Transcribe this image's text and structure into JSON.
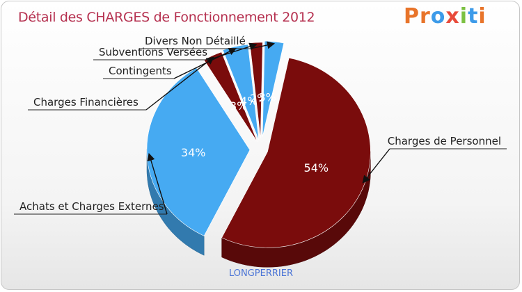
{
  "title": "Détail des CHARGES de Fonctionnement 2012",
  "logo": {
    "text": "Proxiti",
    "letters": [
      "P",
      "r",
      "o",
      "x",
      "i",
      "t",
      "i"
    ],
    "colors": [
      "#e8742a",
      "#e8742a",
      "#3d9be9",
      "#e84a3a",
      "#7cc142",
      "#3d9be9",
      "#e8742a"
    ]
  },
  "commune": "LONGPERRIER",
  "colors": {
    "red": "#7a0c0c",
    "blue": "#46aaf2",
    "title": "#b5304f"
  },
  "chart_data": {
    "type": "pie",
    "title": "Détail des CHARGES de Fonctionnement 2012",
    "subtitle": "LONGPERRIER",
    "slices": [
      {
        "label": "Charges de Personnel",
        "value": 54,
        "pct_label": "54%",
        "color": "#7a0c0c"
      },
      {
        "label": "Achats et Charges Externes",
        "value": 34,
        "pct_label": "34%",
        "color": "#46aaf2"
      },
      {
        "label": "Charges Financières",
        "value": 3,
        "pct_label": "3%",
        "color": "#7a0c0c"
      },
      {
        "label": "Contingents",
        "value": 4,
        "pct_label": "4%",
        "color": "#46aaf2"
      },
      {
        "label": "Subventions Versées",
        "value": 2,
        "pct_label": "2%",
        "color": "#7a0c0c"
      },
      {
        "label": "Divers Non Détaillé",
        "value": 3,
        "pct_label": "3%",
        "color": "#46aaf2"
      }
    ]
  }
}
